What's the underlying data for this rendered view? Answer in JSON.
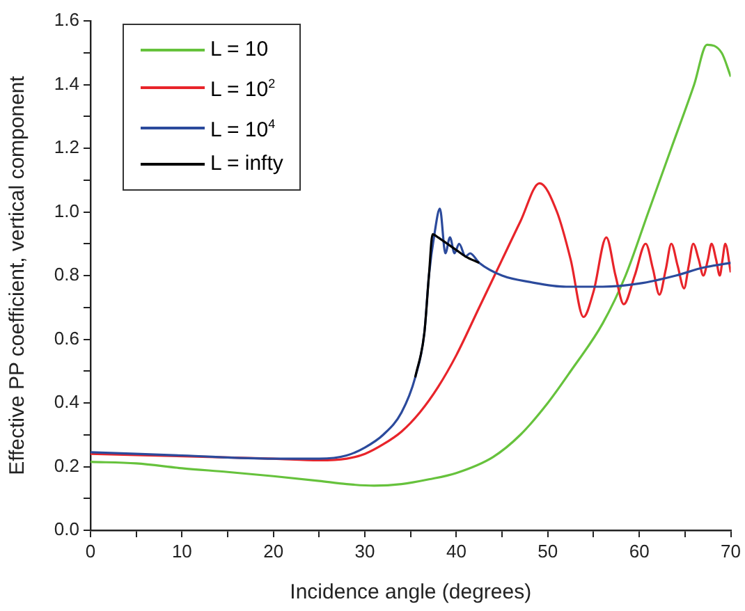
{
  "chart_data": {
    "type": "line",
    "xlabel": "Incidence angle (degrees)",
    "ylabel": "Effective PP coefficient, vertical component",
    "xlim": [
      0,
      70
    ],
    "ylim": [
      0,
      1.6
    ],
    "xticks": [
      0,
      {
        "value": 5,
        "label": null
      },
      10,
      {
        "value": 15,
        "label": null
      },
      20,
      {
        "value": 25,
        "label": null
      },
      30,
      {
        "value": 35,
        "label": null
      },
      40,
      {
        "value": 45,
        "label": null
      },
      50,
      {
        "value": 55,
        "label": null
      },
      60,
      {
        "value": 65,
        "label": null
      },
      70
    ],
    "yticks": [
      {
        "value": 0,
        "label": "0.0"
      },
      {
        "value": 0.1,
        "label": null
      },
      {
        "value": 0.2,
        "label": "0.2"
      },
      {
        "value": 0.3,
        "label": null
      },
      {
        "value": 0.4,
        "label": "0.4"
      },
      {
        "value": 0.5,
        "label": null
      },
      {
        "value": 0.6,
        "label": "0.6"
      },
      {
        "value": 0.7,
        "label": null
      },
      {
        "value": 0.8,
        "label": "0.8"
      },
      {
        "value": 0.9,
        "label": null
      },
      {
        "value": 1.0,
        "label": "1.0"
      },
      {
        "value": 1.1,
        "label": null
      },
      {
        "value": 1.2,
        "label": "1.2"
      },
      {
        "value": 1.3,
        "label": null
      },
      {
        "value": 1.4,
        "label": "1.4"
      },
      {
        "value": 1.5,
        "label": null
      },
      {
        "value": 1.6,
        "label": "1.6"
      }
    ],
    "legend": "top left",
    "grid": false,
    "series": [
      {
        "name": "L = 10",
        "color": "#66c23c",
        "x": [
          0,
          5,
          10,
          15,
          20,
          25,
          28,
          31,
          34,
          37,
          40,
          44,
          47,
          50,
          52.5,
          56,
          58.5,
          61,
          63.5,
          66,
          67.4,
          69,
          70
        ],
        "values": [
          0.215,
          0.21,
          0.195,
          0.183,
          0.17,
          0.155,
          0.145,
          0.14,
          0.145,
          0.16,
          0.18,
          0.23,
          0.3,
          0.4,
          0.5,
          0.65,
          0.8,
          1.0,
          1.2,
          1.4,
          1.525,
          1.5,
          1.425
        ]
      },
      {
        "name": "L = 10$^{2}$",
        "color": "#e8242a",
        "x": [
          0,
          20,
          25,
          28,
          30,
          32,
          34,
          36,
          38,
          40,
          42.5,
          45,
          47,
          49.1,
          51,
          52.5,
          53.9,
          55,
          56.4,
          57.4,
          58.3,
          59.5,
          60.7,
          61.5,
          62.2,
          62.9,
          63.5,
          64.2,
          64.9,
          65.4,
          65.9,
          66.5,
          67,
          67.5,
          67.9,
          68.4,
          68.8,
          69.1,
          69.4,
          70
        ],
        "values": [
          0.24,
          0.225,
          0.22,
          0.225,
          0.24,
          0.27,
          0.31,
          0.37,
          0.45,
          0.55,
          0.7,
          0.85,
          0.97,
          1.09,
          1.0,
          0.85,
          0.67,
          0.75,
          0.92,
          0.8,
          0.71,
          0.8,
          0.9,
          0.82,
          0.74,
          0.82,
          0.9,
          0.83,
          0.76,
          0.83,
          0.9,
          0.85,
          0.8,
          0.85,
          0.9,
          0.85,
          0.8,
          0.85,
          0.9,
          0.81
        ]
      },
      {
        "name": "L = 10$^{4}$",
        "color": "#2b4a9c",
        "x": [
          0,
          10,
          20,
          25,
          28,
          30,
          32,
          34,
          35.5,
          36.5,
          37,
          37.6,
          38.2,
          38.8,
          39.3,
          39.8,
          40.3,
          41,
          41.5,
          42.5,
          45,
          48,
          52,
          56,
          60,
          64,
          67,
          70
        ],
        "values": [
          0.245,
          0.235,
          0.225,
          0.225,
          0.235,
          0.26,
          0.3,
          0.37,
          0.48,
          0.62,
          0.8,
          0.93,
          1.01,
          0.87,
          0.92,
          0.87,
          0.9,
          0.86,
          0.87,
          0.84,
          0.8,
          0.78,
          0.765,
          0.765,
          0.775,
          0.8,
          0.825,
          0.84
        ]
      },
      {
        "name": "L = infty",
        "color": "#000000",
        "x": [
          35.5,
          36.5,
          37,
          37.4,
          38,
          39,
          40,
          41,
          42.5
        ],
        "values": [
          0.48,
          0.62,
          0.8,
          0.93,
          0.92,
          0.9,
          0.88,
          0.86,
          0.84
        ]
      }
    ]
  }
}
